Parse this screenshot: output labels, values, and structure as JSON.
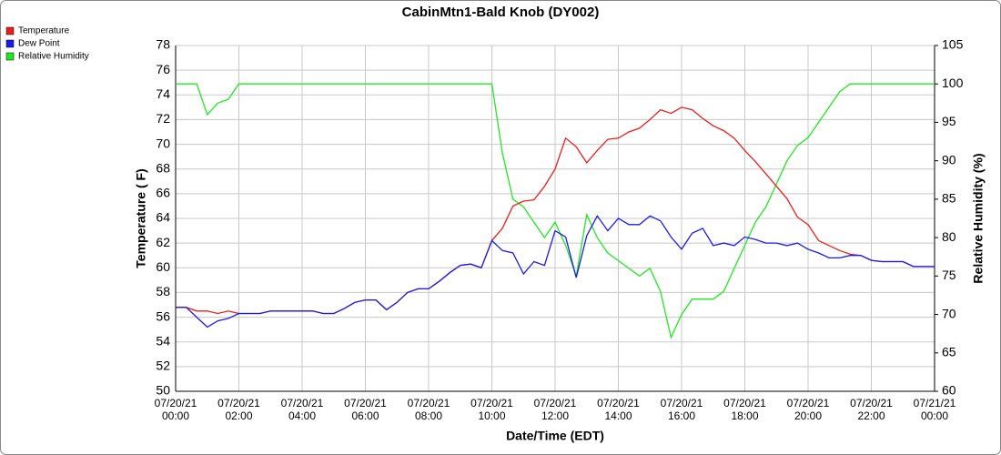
{
  "chart_data": {
    "type": "line",
    "title": "CabinMtn1-Bald Knob (DY002)",
    "x_label": "Date/Time (EDT)",
    "y_label": "Temperature ( F)",
    "y2_label": "Relative Humidity (%)",
    "x": [
      "2021-07-20T00:00",
      "2021-07-20T00:20",
      "2021-07-20T00:40",
      "2021-07-20T01:00",
      "2021-07-20T01:20",
      "2021-07-20T01:40",
      "2021-07-20T02:00",
      "2021-07-20T02:20",
      "2021-07-20T02:40",
      "2021-07-20T03:00",
      "2021-07-20T03:20",
      "2021-07-20T03:40",
      "2021-07-20T04:00",
      "2021-07-20T04:20",
      "2021-07-20T04:40",
      "2021-07-20T05:00",
      "2021-07-20T05:20",
      "2021-07-20T05:40",
      "2021-07-20T06:00",
      "2021-07-20T06:20",
      "2021-07-20T06:40",
      "2021-07-20T07:00",
      "2021-07-20T07:20",
      "2021-07-20T07:40",
      "2021-07-20T08:00",
      "2021-07-20T08:20",
      "2021-07-20T08:40",
      "2021-07-20T09:00",
      "2021-07-20T09:20",
      "2021-07-20T09:40",
      "2021-07-20T10:00",
      "2021-07-20T10:20",
      "2021-07-20T10:40",
      "2021-07-20T11:00",
      "2021-07-20T11:20",
      "2021-07-20T11:40",
      "2021-07-20T12:00",
      "2021-07-20T12:20",
      "2021-07-20T12:40",
      "2021-07-20T13:00",
      "2021-07-20T13:20",
      "2021-07-20T13:40",
      "2021-07-20T14:00",
      "2021-07-20T14:20",
      "2021-07-20T14:40",
      "2021-07-20T15:00",
      "2021-07-20T15:20",
      "2021-07-20T15:40",
      "2021-07-20T16:00",
      "2021-07-20T16:20",
      "2021-07-20T16:40",
      "2021-07-20T17:00",
      "2021-07-20T17:20",
      "2021-07-20T17:40",
      "2021-07-20T18:00",
      "2021-07-20T18:20",
      "2021-07-20T18:40",
      "2021-07-20T19:00",
      "2021-07-20T19:20",
      "2021-07-20T19:40",
      "2021-07-20T20:00",
      "2021-07-20T20:20",
      "2021-07-20T20:40",
      "2021-07-20T21:00",
      "2021-07-20T21:20",
      "2021-07-20T21:40",
      "2021-07-20T22:00",
      "2021-07-20T22:20",
      "2021-07-20T22:40",
      "2021-07-20T23:00",
      "2021-07-20T23:20",
      "2021-07-20T23:40",
      "2021-07-21T00:00"
    ],
    "series": [
      {
        "name": "Temperature",
        "color": "#e8201c",
        "values": [
          56.8,
          56.8,
          56.5,
          56.5,
          56.3,
          56.5,
          56.3,
          56.3,
          56.3,
          56.5,
          56.5,
          56.5,
          56.5,
          56.5,
          56.3,
          56.3,
          56.7,
          57.2,
          57.4,
          57.4,
          56.6,
          57.2,
          58.0,
          58.3,
          58.3,
          58.9,
          59.6,
          60.2,
          60.3,
          60.0,
          62.2,
          63.2,
          65.0,
          65.4,
          65.5,
          66.6,
          68.0,
          70.5,
          69.8,
          68.5,
          69.5,
          70.4,
          70.5,
          71.0,
          71.3,
          72.0,
          72.8,
          72.5,
          73.0,
          72.8,
          72.1,
          71.5,
          71.1,
          70.5,
          69.5,
          68.6,
          67.6,
          66.6,
          65.6,
          64.1,
          63.5,
          62.2,
          61.8,
          61.4,
          61.1,
          61.0,
          60.6,
          60.5,
          60.5,
          60.5,
          60.1,
          60.1,
          60.1
        ]
      },
      {
        "name": "Dew Point",
        "color": "#1c1ce8",
        "values": [
          56.8,
          56.8,
          56.0,
          55.2,
          55.7,
          55.9,
          56.3,
          56.3,
          56.3,
          56.5,
          56.5,
          56.5,
          56.5,
          56.5,
          56.3,
          56.3,
          56.7,
          57.2,
          57.4,
          57.4,
          56.6,
          57.2,
          58.0,
          58.3,
          58.3,
          58.9,
          59.6,
          60.2,
          60.3,
          60.0,
          62.2,
          61.4,
          61.2,
          59.5,
          60.5,
          60.2,
          63.0,
          62.5,
          59.2,
          62.6,
          64.2,
          63.0,
          64.0,
          63.5,
          63.5,
          64.2,
          63.8,
          62.5,
          61.5,
          62.8,
          63.2,
          61.8,
          62.0,
          61.8,
          62.5,
          62.3,
          62.0,
          62.0,
          61.8,
          62.0,
          61.5,
          61.2,
          60.8,
          60.8,
          61.0,
          61.0,
          60.6,
          60.5,
          60.5,
          60.5,
          60.1,
          60.1,
          60.1
        ]
      },
      {
        "name": "Relative Humidity",
        "color": "#22e822",
        "axis": "y2",
        "values": [
          100,
          100,
          100,
          96,
          97.5,
          98,
          100,
          100,
          100,
          100,
          100,
          100,
          100,
          100,
          100,
          100,
          100,
          100,
          100,
          100,
          100,
          100,
          100,
          100,
          100,
          100,
          100,
          100,
          100,
          100,
          100,
          91,
          85,
          84,
          82,
          80,
          82,
          79,
          75,
          83,
          80,
          78,
          77,
          76,
          75,
          76,
          73,
          67,
          70,
          72,
          72,
          72,
          73,
          76,
          79,
          82,
          84,
          87,
          90,
          92,
          93,
          95,
          97,
          99,
          100,
          100,
          100,
          100,
          100,
          100,
          100,
          100,
          100
        ]
      }
    ],
    "xlim": [
      "2021-07-20T00:00",
      "2021-07-21T00:00"
    ],
    "xticks": [
      {
        "value": "2021-07-20T00:00",
        "label": "07/20/21 00:00"
      },
      {
        "value": "2021-07-20T02:00",
        "label": "07/20/21 02:00"
      },
      {
        "value": "2021-07-20T04:00",
        "label": "07/20/21 04:00"
      },
      {
        "value": "2021-07-20T06:00",
        "label": "07/20/21 06:00"
      },
      {
        "value": "2021-07-20T08:00",
        "label": "07/20/21 08:00"
      },
      {
        "value": "2021-07-20T10:00",
        "label": "07/20/21 10:00"
      },
      {
        "value": "2021-07-20T12:00",
        "label": "07/20/21 12:00"
      },
      {
        "value": "2021-07-20T14:00",
        "label": "07/20/21 14:00"
      },
      {
        "value": "2021-07-20T16:00",
        "label": "07/20/21 16:00"
      },
      {
        "value": "2021-07-20T18:00",
        "label": "07/20/21 18:00"
      },
      {
        "value": "2021-07-20T20:00",
        "label": "07/20/21 20:00"
      },
      {
        "value": "2021-07-20T22:00",
        "label": "07/20/21 22:00"
      },
      {
        "value": "2021-07-21T00:00",
        "label": "07/21/21 00:00"
      }
    ],
    "ylim": [
      50,
      78
    ],
    "yticks": [
      50,
      52,
      54,
      56,
      58,
      60,
      62,
      64,
      66,
      68,
      70,
      72,
      74,
      76,
      78
    ],
    "y2lim": [
      60,
      105
    ],
    "y2ticks": [
      60,
      65,
      70,
      75,
      80,
      85,
      90,
      95,
      100,
      105
    ],
    "grid": true,
    "legend": "top-left"
  }
}
